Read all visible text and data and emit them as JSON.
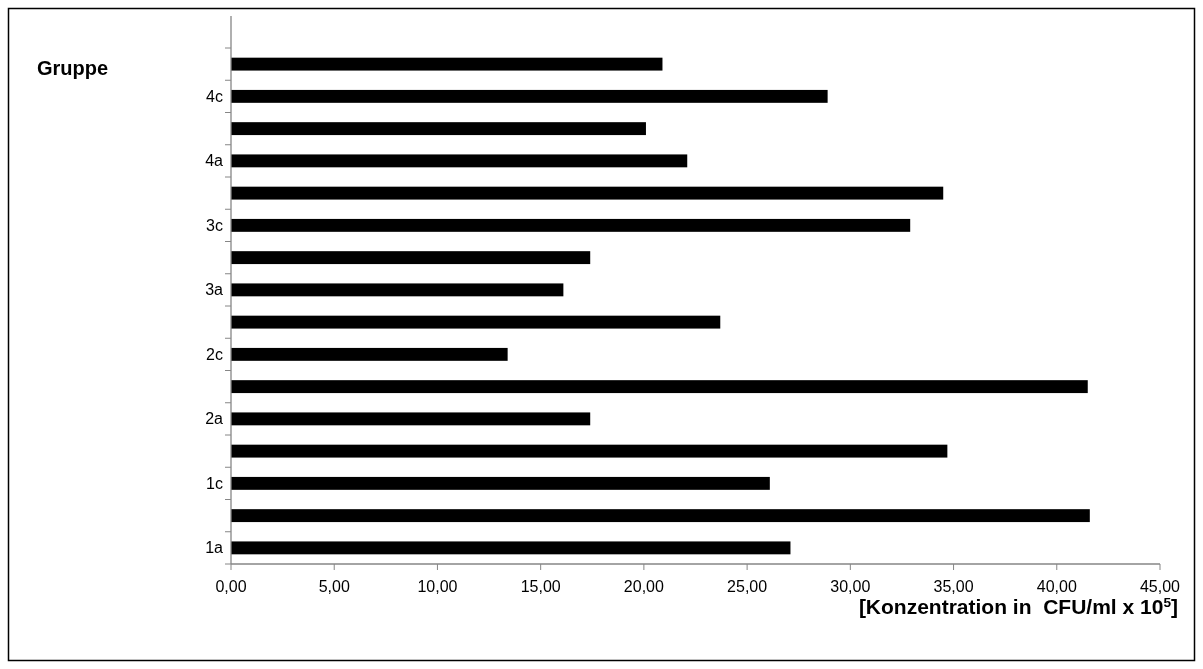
{
  "chart_data": {
    "type": "bar",
    "orientation": "horizontal",
    "ylabel": "Gruppe",
    "xlabel": "[Konzentration in  CFU/ml x 10$^{5}$]",
    "categories": [
      null,
      "4c",
      null,
      "4a",
      null,
      "3c",
      null,
      "3a",
      null,
      "2c",
      null,
      "2a",
      null,
      "1c",
      null,
      "1a"
    ],
    "values": [
      20.9,
      28.9,
      20.1,
      22.1,
      34.5,
      32.9,
      17.4,
      16.1,
      23.7,
      13.4,
      41.5,
      17.4,
      34.7,
      26.1,
      41.6,
      27.1
    ],
    "color": "#000000",
    "xlim": [
      0,
      45
    ],
    "xticks": [
      {
        "value": 0,
        "label": "0,00"
      },
      {
        "value": 5,
        "label": "5,00"
      },
      {
        "value": 10,
        "label": "10,00"
      },
      {
        "value": 15,
        "label": "15,00"
      },
      {
        "value": 20,
        "label": "20,00"
      },
      {
        "value": 25,
        "label": "25,00"
      },
      {
        "value": 30,
        "label": "30,00"
      },
      {
        "value": 35,
        "label": "35,00"
      },
      {
        "value": 40,
        "label": "40,00"
      },
      {
        "value": 45,
        "label": "45,00"
      }
    ],
    "grid": false
  }
}
